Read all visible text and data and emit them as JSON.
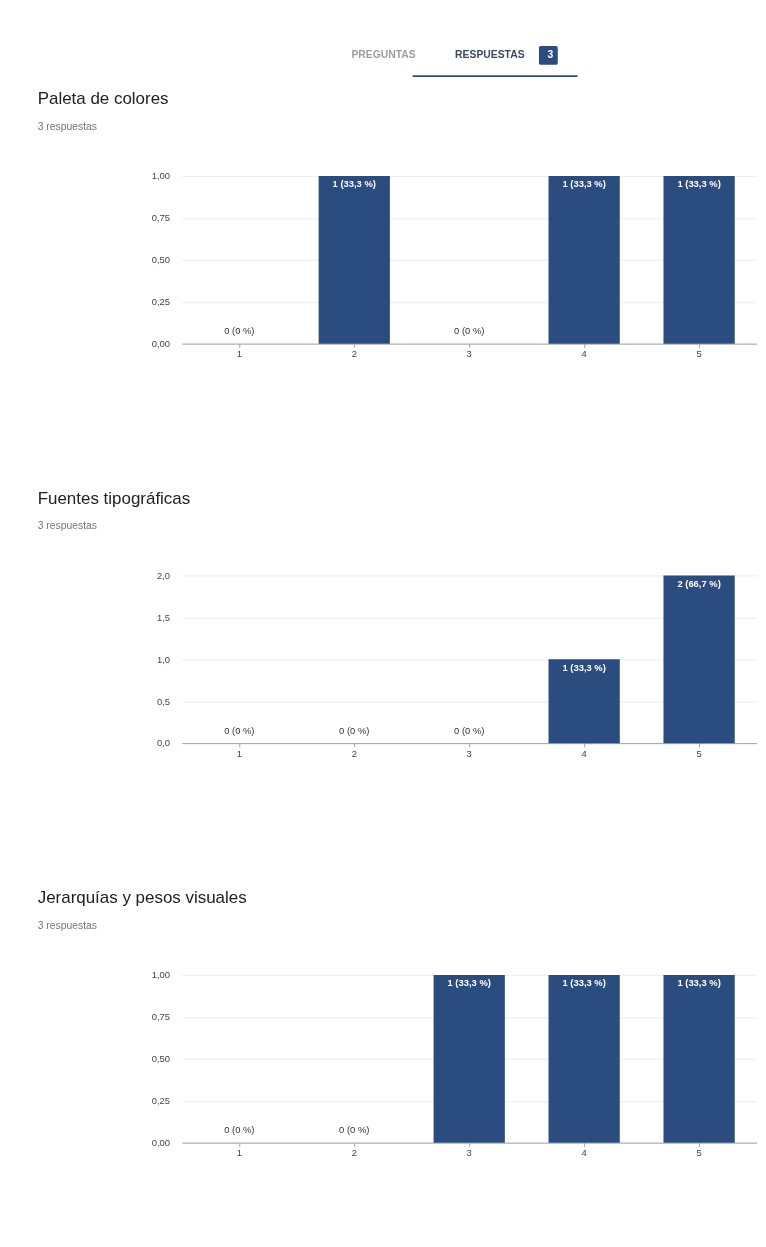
{
  "chart_data": [
    {
      "type": "bar",
      "title": "Paleta de colores",
      "subtitle": "3 respuestas",
      "annotations": [
        "PREGUNTAS",
        "RESPUESTAS",
        "3"
      ],
      "categories": [
        "1",
        "2",
        "3",
        "4",
        "5"
      ],
      "values": [
        0,
        1,
        0,
        1,
        1
      ],
      "color": "#2b4c7e",
      "value_labels": [
        "0 (0 %)",
        "1 (33,3 %)",
        "0 (0 %)",
        "1 (33,3 %)",
        "1 (33,3 %)"
      ],
      "ylim": [
        0,
        1
      ],
      "yticks": [
        {
          "value": 0,
          "label": "0,00"
        },
        {
          "value": 0.25,
          "label": "0,25"
        },
        {
          "value": 0.5,
          "label": "0,50"
        },
        {
          "value": 0.75,
          "label": "0,75"
        },
        {
          "value": 1,
          "label": "1,00"
        }
      ],
      "grid": "y"
    },
    {
      "type": "bar",
      "title": "Fuentes tipográficas",
      "subtitle": "3 respuestas",
      "categories": [
        "1",
        "2",
        "3",
        "4",
        "5"
      ],
      "values": [
        0,
        0,
        0,
        1,
        2
      ],
      "color": "#2b4c7e",
      "value_labels": [
        "0 (0 %)",
        "0 (0 %)",
        "0 (0 %)",
        "1 (33,3 %)",
        "2 (66,7 %)"
      ],
      "ylim": [
        0,
        2
      ],
      "yticks": [
        {
          "value": 0,
          "label": "0,0"
        },
        {
          "value": 0.5,
          "label": "0,5"
        },
        {
          "value": 1,
          "label": "1,0"
        },
        {
          "value": 1.5,
          "label": "1,5"
        },
        {
          "value": 2,
          "label": "2,0"
        }
      ],
      "grid": "y"
    },
    {
      "type": "bar",
      "title": "Jerarquías y pesos visuales",
      "subtitle": "3 respuestas",
      "categories": [
        "1",
        "2",
        "3",
        "4",
        "5"
      ],
      "values": [
        0,
        0,
        1,
        1,
        1
      ],
      "color": "#2b4c7e",
      "value_labels": [
        "0 (0 %)",
        "0 (0 %)",
        "1 (33,3 %)",
        "1 (33,3 %)",
        "1 (33,3 %)"
      ],
      "ylim": [
        0,
        1
      ],
      "yticks": [
        {
          "value": 0,
          "label": "0,00"
        },
        {
          "value": 0.25,
          "label": "0,25"
        },
        {
          "value": 0.5,
          "label": "0,50"
        },
        {
          "value": 0.75,
          "label": "0,75"
        },
        {
          "value": 1,
          "label": "1,00"
        }
      ],
      "grid": "y"
    }
  ]
}
